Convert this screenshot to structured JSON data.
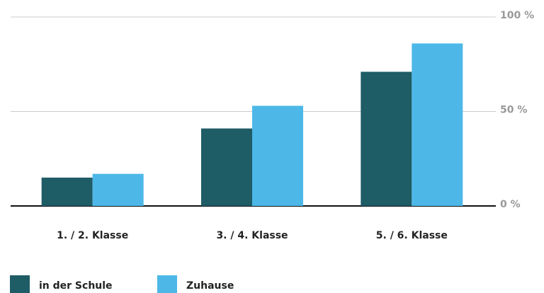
{
  "chart_data": {
    "type": "bar",
    "categories": [
      "1. / 2. Klasse",
      "3. / 4. Klasse",
      "5. / 6. Klasse"
    ],
    "series": [
      {
        "name": "in der Schule",
        "color": "#1e5c66",
        "values": [
          15,
          41,
          71
        ]
      },
      {
        "name": "Zuhause",
        "color": "#4db8e8",
        "values": [
          17,
          53,
          86
        ]
      }
    ],
    "ylim": [
      0,
      100
    ],
    "yticks": [
      {
        "value": 0,
        "label": "0 %"
      },
      {
        "value": 50,
        "label": "50 %"
      },
      {
        "value": 100,
        "label": "100 %"
      }
    ],
    "grid": true
  }
}
